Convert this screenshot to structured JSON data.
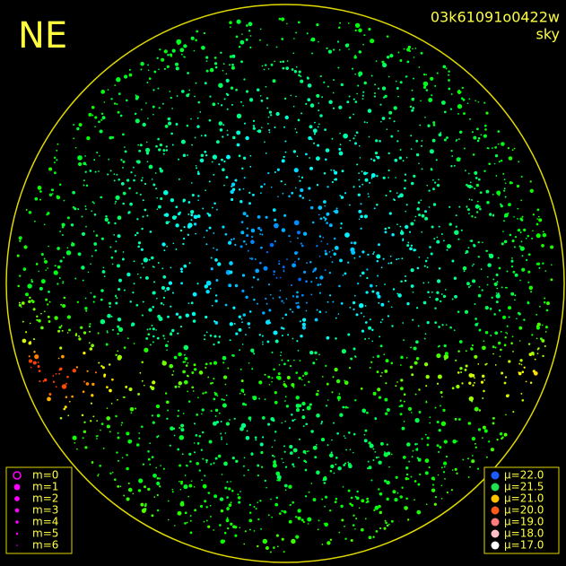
{
  "view_label": "NE",
  "frame_id": "03k61091o0422w",
  "mode": "sky",
  "magnitude_legend": {
    "color": "#ff00ff",
    "items": [
      "m=0",
      "m=1",
      "m=2",
      "m=3",
      "m=4",
      "m=5",
      "m=6"
    ]
  },
  "brightness_legend": {
    "items": [
      {
        "label": "μ=22.0",
        "color": "#1e5cff"
      },
      {
        "label": "μ=21.5",
        "color": "#22e052"
      },
      {
        "label": "μ=21.0",
        "color": "#ffc400"
      },
      {
        "label": "μ=20.0",
        "color": "#ff5a1e"
      },
      {
        "label": "μ=19.0",
        "color": "#ff7c7c"
      },
      {
        "label": "μ=18.0",
        "color": "#ffc0c8"
      },
      {
        "label": "μ=17.0",
        "color": "#ffffff"
      }
    ]
  }
}
